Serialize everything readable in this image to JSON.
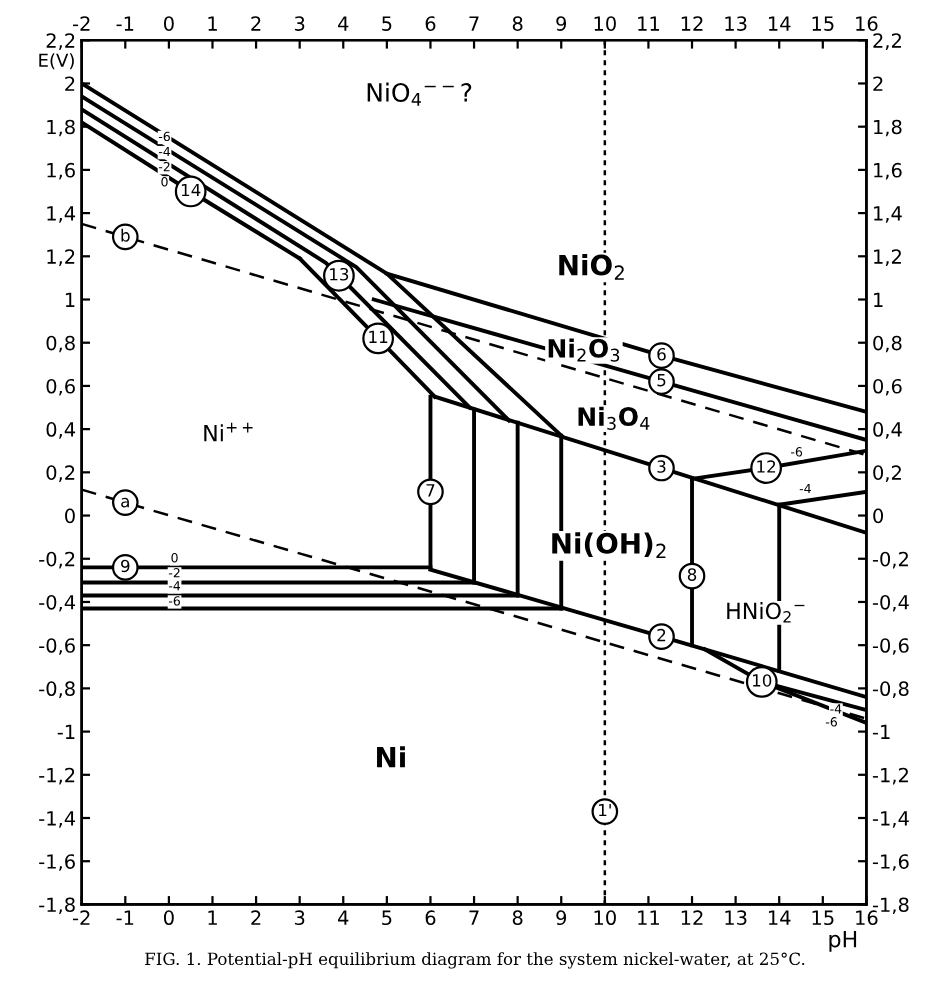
{
  "chart_data": {
    "type": "line",
    "xlabel": "pH",
    "ylabel": "E(V)",
    "xlim": [
      -2,
      16
    ],
    "ylim": [
      -1.8,
      2.2
    ],
    "x2lim": [
      -2,
      16
    ],
    "y2lim": [
      -1.8,
      2.2
    ],
    "xticks": [
      -2,
      -1,
      0,
      1,
      2,
      3,
      4,
      5,
      6,
      7,
      8,
      9,
      10,
      11,
      12,
      13,
      14,
      15,
      16
    ],
    "x2ticks": [
      -2,
      -1,
      0,
      1,
      2,
      3,
      4,
      5,
      6,
      7,
      8,
      9,
      10,
      11,
      12,
      13,
      14,
      15,
      16
    ],
    "yticks": [
      {
        "value": -1.8,
        "label": "-1,8"
      },
      {
        "value": -1.6,
        "label": "-1,6"
      },
      {
        "value": -1.4,
        "label": "-1,4"
      },
      {
        "value": -1.2,
        "label": "-1,2"
      },
      -1,
      {
        "value": -0.8,
        "label": "-0,8"
      },
      {
        "value": -0.6,
        "label": "-0,6"
      },
      {
        "value": -0.4,
        "label": "-0,4"
      },
      {
        "value": -0.2,
        "label": "-0,2"
      },
      0,
      {
        "value": 0.2,
        "label": "0,2"
      },
      {
        "value": 0.4,
        "label": "0,4"
      },
      {
        "value": 0.6,
        "label": "0,6"
      },
      {
        "value": 0.8,
        "label": "0,8"
      },
      1,
      {
        "value": 1.2,
        "label": "1,2"
      },
      {
        "value": 1.4,
        "label": "1,4"
      },
      {
        "value": 1.6,
        "label": "1,6"
      },
      {
        "value": 1.8,
        "label": "1,8"
      },
      2,
      {
        "value": 2.2,
        "label": "2,2"
      }
    ],
    "y2ticks": [
      {
        "value": -1.8,
        "label": "-1,8"
      },
      {
        "value": -1.6,
        "label": "-1,6"
      },
      {
        "value": -1.4,
        "label": "-1,4"
      },
      {
        "value": -1.2,
        "label": "-1,2"
      },
      -1,
      {
        "value": -0.8,
        "label": "-0,8"
      },
      {
        "value": -0.6,
        "label": "-0,6"
      },
      {
        "value": -0.4,
        "label": "-0,4"
      },
      {
        "value": -0.2,
        "label": "-0,2"
      },
      0,
      {
        "value": 0.2,
        "label": "0,2"
      },
      {
        "value": 0.4,
        "label": "0,4"
      },
      {
        "value": 0.6,
        "label": "0,6"
      },
      {
        "value": 0.8,
        "label": "0,8"
      },
      1,
      {
        "value": 1.2,
        "label": "1,2"
      },
      {
        "value": 1.4,
        "label": "1,4"
      },
      {
        "value": 1.6,
        "label": "1,6"
      },
      {
        "value": 1.8,
        "label": "1,8"
      },
      2,
      {
        "value": 2.2,
        "label": "2,2"
      }
    ],
    "grid": false,
    "marker": "none",
    "line_style": "solid",
    "series": [
      {
        "name": "14",
        "color": "#000000",
        "x": [
          -2,
          0.5,
          3.0
        ],
        "values": [
          1.82,
          1.5,
          1.19
        ]
      },
      {
        "name": "13",
        "color": "#000000",
        "x": [
          -2,
          3.6,
          3.9,
          6.9
        ],
        "values": [
          1.88,
          1.17,
          1.11,
          0.5
        ]
      },
      {
        "color": "#000000",
        "x": [
          -2,
          4.3,
          7.8
        ],
        "values": [
          1.94,
          1.15,
          0.44
        ]
      },
      {
        "color": "#000000",
        "x": [
          -2,
          5.0,
          9.0
        ],
        "values": [
          2.0,
          1.12,
          0.37
        ]
      },
      {
        "name": "11",
        "color": "#000000",
        "x": [
          3.0,
          4.8,
          6.1
        ],
        "values": [
          1.19,
          0.82,
          0.55
        ]
      },
      {
        "name": "6",
        "color": "#000000",
        "x": [
          5.0,
          11.3,
          16
        ],
        "values": [
          1.12,
          0.74,
          0.48
        ]
      },
      {
        "name": "5",
        "color": "#000000",
        "x": [
          4.7,
          11.3,
          16
        ],
        "values": [
          1.0,
          0.62,
          0.35
        ]
      },
      {
        "name": "3",
        "color": "#000000",
        "x": [
          6.1,
          11.3,
          16
        ],
        "values": [
          0.55,
          0.22,
          -0.08
        ]
      },
      {
        "name": "12",
        "color": "#000000",
        "x": [
          12,
          13.7,
          16
        ],
        "values": [
          0.17,
          0.22,
          0.3
        ]
      },
      {
        "color": "#000000",
        "x": [
          14,
          16
        ],
        "values": [
          0.05,
          0.11
        ]
      },
      {
        "name": "8",
        "color": "#000000",
        "x": [
          12,
          12,
          12
        ],
        "values": [
          0.17,
          -0.28,
          -0.6
        ]
      },
      {
        "color": "#000000",
        "x": [
          14,
          14
        ],
        "values": [
          0.05,
          -0.72
        ]
      },
      {
        "name": "2",
        "color": "#000000",
        "x": [
          6,
          11.3,
          16
        ],
        "values": [
          -0.25,
          -0.56,
          -0.84
        ]
      },
      {
        "name": "10",
        "color": "#000000",
        "x": [
          12.3,
          13.6,
          16
        ],
        "values": [
          -0.62,
          -0.77,
          -0.9
        ]
      },
      {
        "color": "#000000",
        "x": [
          13.6,
          16
        ],
        "values": [
          -0.77,
          -0.96
        ]
      },
      {
        "name": "9",
        "color": "#000000",
        "x": [
          -2,
          -1,
          6
        ],
        "values": [
          -0.24,
          -0.24,
          -0.24
        ]
      },
      {
        "color": "#000000",
        "x": [
          -2,
          7
        ],
        "values": [
          -0.31,
          -0.31
        ]
      },
      {
        "color": "#000000",
        "x": [
          -2,
          8
        ],
        "values": [
          -0.37,
          -0.37
        ]
      },
      {
        "color": "#000000",
        "x": [
          -2,
          9
        ],
        "values": [
          -0.43,
          -0.43
        ]
      },
      {
        "name": "7",
        "color": "#000000",
        "x": [
          6,
          6,
          6
        ],
        "values": [
          -0.24,
          0.11,
          0.55
        ]
      },
      {
        "color": "#000000",
        "x": [
          7,
          7
        ],
        "values": [
          -0.31,
          0.49
        ]
      },
      {
        "color": "#000000",
        "x": [
          8,
          8
        ],
        "values": [
          -0.37,
          0.43
        ]
      },
      {
        "color": "#000000",
        "x": [
          9,
          9
        ],
        "values": [
          -0.43,
          0.37
        ]
      },
      {
        "name": "a",
        "color": "#000000",
        "line_style": "dashed",
        "x": [
          -2,
          -1,
          16
        ],
        "values": [
          0.12,
          0.06,
          -0.94
        ]
      },
      {
        "name": "b",
        "color": "#000000",
        "line_style": "dashed",
        "x": [
          -2,
          -1,
          16
        ],
        "values": [
          1.35,
          1.29,
          0.28
        ]
      },
      {
        "name": "1'",
        "color": "#000000",
        "line_style": "dotted",
        "x": [
          10,
          10,
          10
        ],
        "values": [
          2.2,
          -1.37,
          -1.8
        ]
      }
    ],
    "annotations": [
      "NiO$_{4}$$^{−−}$?",
      "Ni$^{++}$",
      "NiO$_{2}$",
      "Ni$_{2}$O$_{3}$",
      "Ni$_{3}$O$_{4}$",
      "Ni(OH)$_{2}$",
      "HNiO$_{2}$$^{−}$",
      "Ni",
      {
        "text": "0",
        "x": -0.1,
        "y": 1.54
      },
      {
        "text": "-2",
        "x": -0.1,
        "y": 1.61
      },
      {
        "text": "-4",
        "x": -0.1,
        "y": 1.68
      },
      {
        "text": "-6",
        "x": -0.1,
        "y": 1.75
      },
      {
        "text": "0",
        "x": 0.13,
        "y": -0.2
      },
      {
        "text": "-2",
        "x": 0.13,
        "y": -0.27
      },
      {
        "text": "-4",
        "x": 0.13,
        "y": -0.33
      },
      {
        "text": "-6",
        "x": 0.13,
        "y": -0.4
      },
      {
        "text": "-6",
        "x": 14.4,
        "y": 0.29
      },
      {
        "text": "-4",
        "x": 14.6,
        "y": 0.12
      },
      {
        "text": "-4",
        "x": 15.3,
        "y": -0.9
      },
      {
        "text": "-6",
        "x": 15.2,
        "y": -0.96
      },
      "FIG. 1. Potential-pH equilibrium diagram for the system nickel-water, at 25°C."
    ]
  }
}
